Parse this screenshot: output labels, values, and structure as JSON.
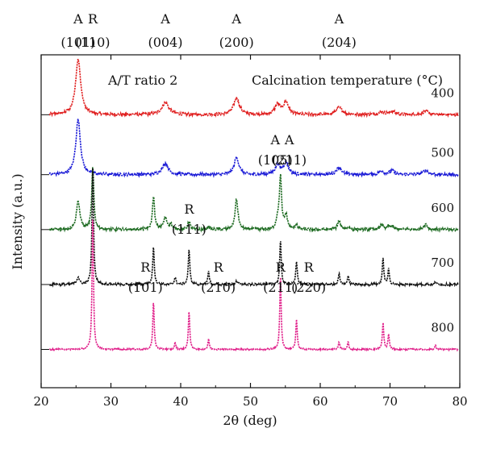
{
  "chart_data": {
    "type": "line",
    "title": "",
    "xlabel": "2θ (deg)",
    "ylabel": "Intensity (a.u.)",
    "xlim": [
      20,
      80
    ],
    "x_ticks": [
      20,
      30,
      40,
      50,
      60,
      70,
      80
    ],
    "y_ticks_shown": false,
    "grid": false,
    "legend_title": "Calcination temperature (°C)",
    "ratio_label": "A/T ratio 2",
    "top_peak_labels": [
      {
        "phase": "A",
        "hkl": "(101)",
        "two_theta": 25.3
      },
      {
        "phase": "R",
        "hkl": "(110)",
        "two_theta": 27.4
      },
      {
        "phase": "A",
        "hkl": "(004)",
        "two_theta": 37.8
      },
      {
        "phase": "A",
        "hkl": "(200)",
        "two_theta": 48.0
      },
      {
        "phase": "A",
        "hkl": "(204)",
        "two_theta": 62.7
      }
    ],
    "inner_peak_labels": [
      {
        "phase": "A",
        "hkl": "(105)",
        "two_theta": 53.9
      },
      {
        "phase": "A",
        "hkl": "(211)",
        "two_theta": 55.1
      },
      {
        "phase": "R",
        "hkl": "(111)",
        "two_theta": 41.2
      },
      {
        "phase": "R",
        "hkl": "(101)",
        "two_theta": 36.1
      },
      {
        "phase": "R",
        "hkl": "(210)",
        "two_theta": 44.0
      },
      {
        "phase": "R",
        "hkl": "(211)",
        "two_theta": 54.3
      },
      {
        "phase": "R",
        "hkl": "(220)",
        "two_theta": 56.6
      }
    ],
    "series": [
      {
        "name": "400",
        "color": "#e02020",
        "baseline": 0.82,
        "noise": 0.004,
        "peaks": [
          [
            25.3,
            0.165,
            0.45
          ],
          [
            37.8,
            0.036,
            0.6
          ],
          [
            48.0,
            0.05,
            0.5
          ],
          [
            53.9,
            0.03,
            0.45
          ],
          [
            55.1,
            0.036,
            0.45
          ],
          [
            62.7,
            0.022,
            0.5
          ],
          [
            68.8,
            0.008,
            0.5
          ],
          [
            70.3,
            0.01,
            0.5
          ],
          [
            75.1,
            0.01,
            0.6
          ]
        ]
      },
      {
        "name": "500",
        "color": "#1a1ad6",
        "baseline": 0.64,
        "noise": 0.004,
        "peaks": [
          [
            25.3,
            0.165,
            0.4
          ],
          [
            37.8,
            0.034,
            0.5
          ],
          [
            48.0,
            0.052,
            0.4
          ],
          [
            53.9,
            0.03,
            0.4
          ],
          [
            55.1,
            0.036,
            0.4
          ],
          [
            62.7,
            0.022,
            0.45
          ],
          [
            68.8,
            0.009,
            0.45
          ],
          [
            70.3,
            0.011,
            0.45
          ],
          [
            75.1,
            0.012,
            0.5
          ]
        ]
      },
      {
        "name": "600",
        "color": "#1e6b22",
        "baseline": 0.475,
        "noise": 0.004,
        "peaks": [
          [
            25.3,
            0.085,
            0.3
          ],
          [
            27.4,
            0.185,
            0.18
          ],
          [
            36.1,
            0.1,
            0.18
          ],
          [
            37.8,
            0.035,
            0.3
          ],
          [
            38.6,
            0.014,
            0.25
          ],
          [
            41.2,
            0.024,
            0.2
          ],
          [
            44.0,
            0.008,
            0.2
          ],
          [
            48.0,
            0.09,
            0.25
          ],
          [
            53.9,
            0.03,
            0.25
          ],
          [
            54.3,
            0.155,
            0.18
          ],
          [
            55.1,
            0.04,
            0.25
          ],
          [
            56.6,
            0.015,
            0.2
          ],
          [
            62.7,
            0.026,
            0.25
          ],
          [
            64.0,
            0.008,
            0.2
          ],
          [
            68.8,
            0.015,
            0.25
          ],
          [
            69.8,
            0.01,
            0.2
          ],
          [
            70.3,
            0.01,
            0.25
          ],
          [
            75.1,
            0.016,
            0.3
          ]
        ]
      },
      {
        "name": "700",
        "color": "#111111",
        "baseline": 0.31,
        "noise": 0.003,
        "peaks": [
          [
            25.3,
            0.022,
            0.22
          ],
          [
            27.4,
            0.36,
            0.13
          ],
          [
            36.1,
            0.115,
            0.13
          ],
          [
            39.2,
            0.022,
            0.13
          ],
          [
            41.2,
            0.105,
            0.13
          ],
          [
            44.0,
            0.04,
            0.13
          ],
          [
            48.0,
            0.01,
            0.2
          ],
          [
            54.3,
            0.13,
            0.13
          ],
          [
            56.6,
            0.07,
            0.13
          ],
          [
            62.7,
            0.032,
            0.13
          ],
          [
            64.0,
            0.026,
            0.13
          ],
          [
            69.0,
            0.078,
            0.13
          ],
          [
            69.8,
            0.045,
            0.13
          ],
          [
            76.5,
            0.008,
            0.13
          ]
        ]
      },
      {
        "name": "800",
        "color": "#e0208a",
        "baseline": 0.115,
        "noise": 0.002,
        "peaks": [
          [
            27.4,
            0.4,
            0.12
          ],
          [
            36.1,
            0.145,
            0.12
          ],
          [
            39.2,
            0.02,
            0.12
          ],
          [
            41.2,
            0.115,
            0.12
          ],
          [
            44.0,
            0.03,
            0.12
          ],
          [
            54.3,
            0.22,
            0.12
          ],
          [
            56.6,
            0.09,
            0.12
          ],
          [
            62.7,
            0.022,
            0.12
          ],
          [
            64.0,
            0.022,
            0.12
          ],
          [
            69.0,
            0.08,
            0.12
          ],
          [
            69.8,
            0.045,
            0.12
          ],
          [
            76.5,
            0.012,
            0.12
          ]
        ]
      }
    ]
  }
}
